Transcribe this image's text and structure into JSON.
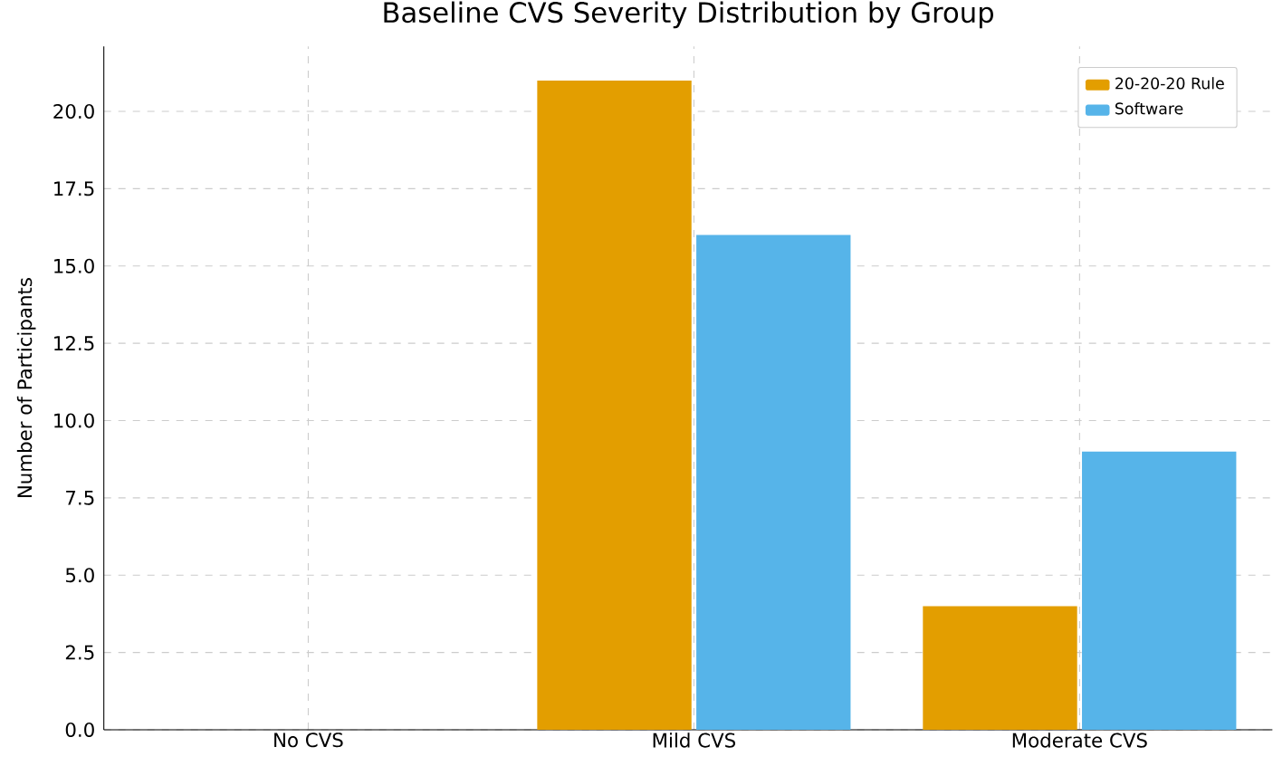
{
  "chart_data": {
    "type": "bar",
    "title": "Baseline CVS Severity Distribution by Group",
    "ylabel": "Number of Participants",
    "categories": [
      "No CVS",
      "Mild CVS",
      "Moderate CVS"
    ],
    "series": [
      {
        "name": "20-20-20 Rule",
        "color": "#e39e00",
        "values": [
          0,
          21,
          4
        ]
      },
      {
        "name": "Software",
        "color": "#56b4e9",
        "values": [
          0,
          16,
          9
        ]
      }
    ],
    "ylim": [
      0,
      22.1
    ],
    "yticks": [
      {
        "value": 0,
        "label": "0.0"
      },
      2.5,
      {
        "value": 5,
        "label": "5.0"
      },
      7.5,
      {
        "value": 10,
        "label": "10.0"
      },
      12.5,
      {
        "value": 15,
        "label": "15.0"
      },
      17.5,
      {
        "value": 20,
        "label": "20.0"
      }
    ],
    "grid": true,
    "legend": "top right"
  }
}
